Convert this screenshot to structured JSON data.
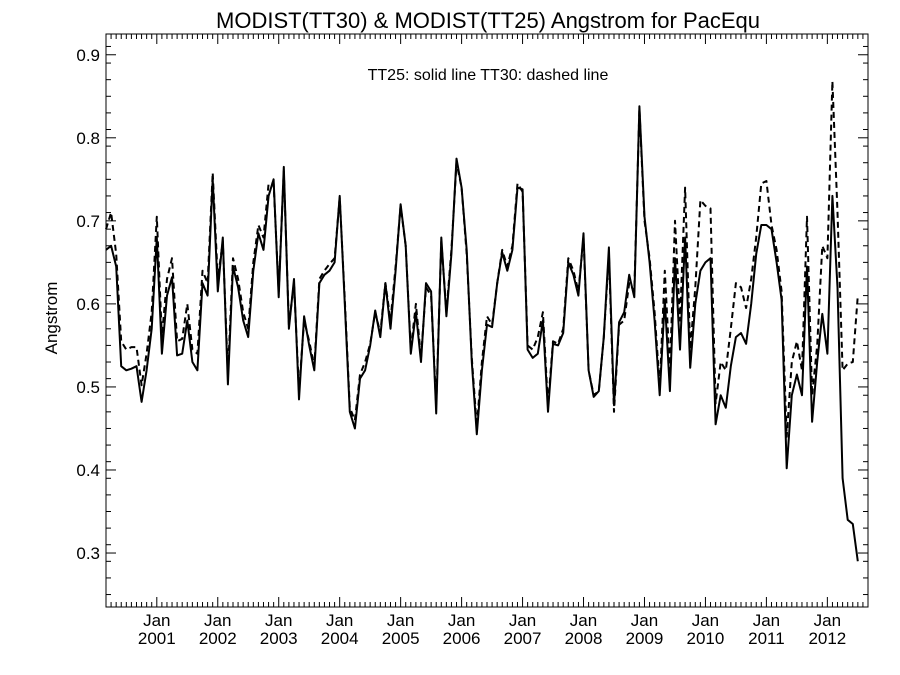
{
  "chart_data": {
    "type": "line",
    "title": "MODIST(TT30) & MODIST(TT25)  Angstrom for PacEqu",
    "ylabel": "Angstrom",
    "xlabel": "",
    "annotation": "TT25: solid line   TT30: dashed line",
    "ylim": [
      0.235,
      0.925
    ],
    "xlim": [
      "2000-03",
      "2012-09"
    ],
    "yticks": [
      0.3,
      0.4,
      0.5,
      0.6,
      0.7,
      0.8,
      0.9
    ],
    "ytick_labels": [
      "0.3",
      "0.4",
      "0.5",
      "0.6",
      "0.7",
      "0.8",
      "0.9"
    ],
    "xticks": [
      {
        "date": "2001-01",
        "month": "Jan",
        "year": "2001"
      },
      {
        "date": "2002-01",
        "month": "Jan",
        "year": "2002"
      },
      {
        "date": "2003-01",
        "month": "Jan",
        "year": "2003"
      },
      {
        "date": "2004-01",
        "month": "Jan",
        "year": "2004"
      },
      {
        "date": "2005-01",
        "month": "Jan",
        "year": "2005"
      },
      {
        "date": "2006-01",
        "month": "Jan",
        "year": "2006"
      },
      {
        "date": "2007-01",
        "month": "Jan",
        "year": "2007"
      },
      {
        "date": "2008-01",
        "month": "Jan",
        "year": "2008"
      },
      {
        "date": "2009-01",
        "month": "Jan",
        "year": "2009"
      },
      {
        "date": "2010-01",
        "month": "Jan",
        "year": "2010"
      },
      {
        "date": "2011-01",
        "month": "Jan",
        "year": "2011"
      },
      {
        "date": "2012-01",
        "month": "Jan",
        "year": "2012"
      }
    ],
    "x_start": "2000-03",
    "x_step": "1 month",
    "series": [
      {
        "name": "TT25",
        "style": "solid",
        "color": "#000000",
        "values": [
          0.665,
          0.67,
          0.645,
          0.525,
          0.52,
          0.522,
          0.525,
          0.482,
          0.52,
          0.57,
          0.68,
          0.54,
          0.61,
          0.632,
          0.538,
          0.54,
          0.58,
          0.53,
          0.52,
          0.625,
          0.61,
          0.75,
          0.615,
          0.68,
          0.503,
          0.645,
          0.62,
          0.58,
          0.56,
          0.64,
          0.685,
          0.665,
          0.73,
          0.75,
          0.608,
          0.765,
          0.57,
          0.63,
          0.485,
          0.585,
          0.55,
          0.52,
          0.625,
          0.635,
          0.64,
          0.65,
          0.73,
          0.6,
          0.47,
          0.45,
          0.51,
          0.52,
          0.55,
          0.592,
          0.56,
          0.625,
          0.57,
          0.64,
          0.72,
          0.67,
          0.54,
          0.59,
          0.53,
          0.625,
          0.615,
          0.468,
          0.68,
          0.585,
          0.66,
          0.775,
          0.74,
          0.665,
          0.53,
          0.443,
          0.52,
          0.575,
          0.572,
          0.625,
          0.662,
          0.64,
          0.665,
          0.74,
          0.738,
          0.545,
          0.535,
          0.54,
          0.58,
          0.47,
          0.552,
          0.55,
          0.565,
          0.65,
          0.635,
          0.61,
          0.685,
          0.52,
          0.488,
          0.495,
          0.56,
          0.668,
          0.478,
          0.578,
          0.59,
          0.635,
          0.608,
          0.838,
          0.705,
          0.65,
          0.58,
          0.49,
          0.605,
          0.495,
          0.655,
          0.545,
          0.68,
          0.523,
          0.6,
          0.64,
          0.65,
          0.655,
          0.455,
          0.49,
          0.475,
          0.525,
          0.56,
          0.565,
          0.552,
          0.6,
          0.66,
          0.695,
          0.695,
          0.69,
          0.65,
          0.605,
          0.402,
          0.49,
          0.515,
          0.49,
          0.645,
          0.458,
          0.53,
          0.588,
          0.54,
          0.73,
          0.62,
          0.39,
          0.34,
          0.335,
          0.29
        ]
      },
      {
        "name": "TT30",
        "style": "dashed",
        "color": "#000000",
        "values": [
          0.69,
          0.71,
          0.66,
          0.555,
          0.545,
          0.548,
          0.548,
          0.502,
          0.54,
          0.59,
          0.705,
          0.56,
          0.63,
          0.655,
          0.555,
          0.558,
          0.6,
          0.545,
          0.54,
          0.64,
          0.625,
          0.758,
          0.63,
          0.675,
          0.515,
          0.655,
          0.63,
          0.59,
          0.57,
          0.65,
          0.695,
          0.68,
          0.745,
          0.745,
          0.615,
          0.76,
          0.575,
          0.625,
          0.495,
          0.58,
          0.555,
          0.525,
          0.63,
          0.64,
          0.648,
          0.655,
          0.728,
          0.605,
          0.475,
          0.46,
          0.515,
          0.53,
          0.552,
          0.59,
          0.565,
          0.625,
          0.58,
          0.645,
          0.718,
          0.67,
          0.545,
          0.6,
          0.535,
          0.62,
          0.61,
          0.478,
          0.675,
          0.59,
          0.665,
          0.77,
          0.74,
          0.66,
          0.535,
          0.452,
          0.53,
          0.585,
          0.575,
          0.625,
          0.665,
          0.645,
          0.67,
          0.745,
          0.735,
          0.55,
          0.545,
          0.56,
          0.59,
          0.478,
          0.555,
          0.552,
          0.57,
          0.655,
          0.64,
          0.615,
          0.68,
          0.52,
          0.49,
          0.495,
          0.56,
          0.66,
          0.47,
          0.575,
          0.58,
          0.625,
          0.615,
          0.835,
          0.7,
          0.655,
          0.59,
          0.5,
          0.64,
          0.52,
          0.7,
          0.58,
          0.74,
          0.545,
          0.62,
          0.725,
          0.718,
          0.715,
          0.48,
          0.53,
          0.52,
          0.57,
          0.625,
          0.62,
          0.595,
          0.63,
          0.68,
          0.745,
          0.748,
          0.695,
          0.665,
          0.615,
          0.44,
          0.53,
          0.555,
          0.52,
          0.705,
          0.49,
          0.55,
          0.67,
          0.655,
          0.868,
          0.71,
          0.52,
          0.528,
          0.53,
          0.61
        ]
      }
    ]
  }
}
